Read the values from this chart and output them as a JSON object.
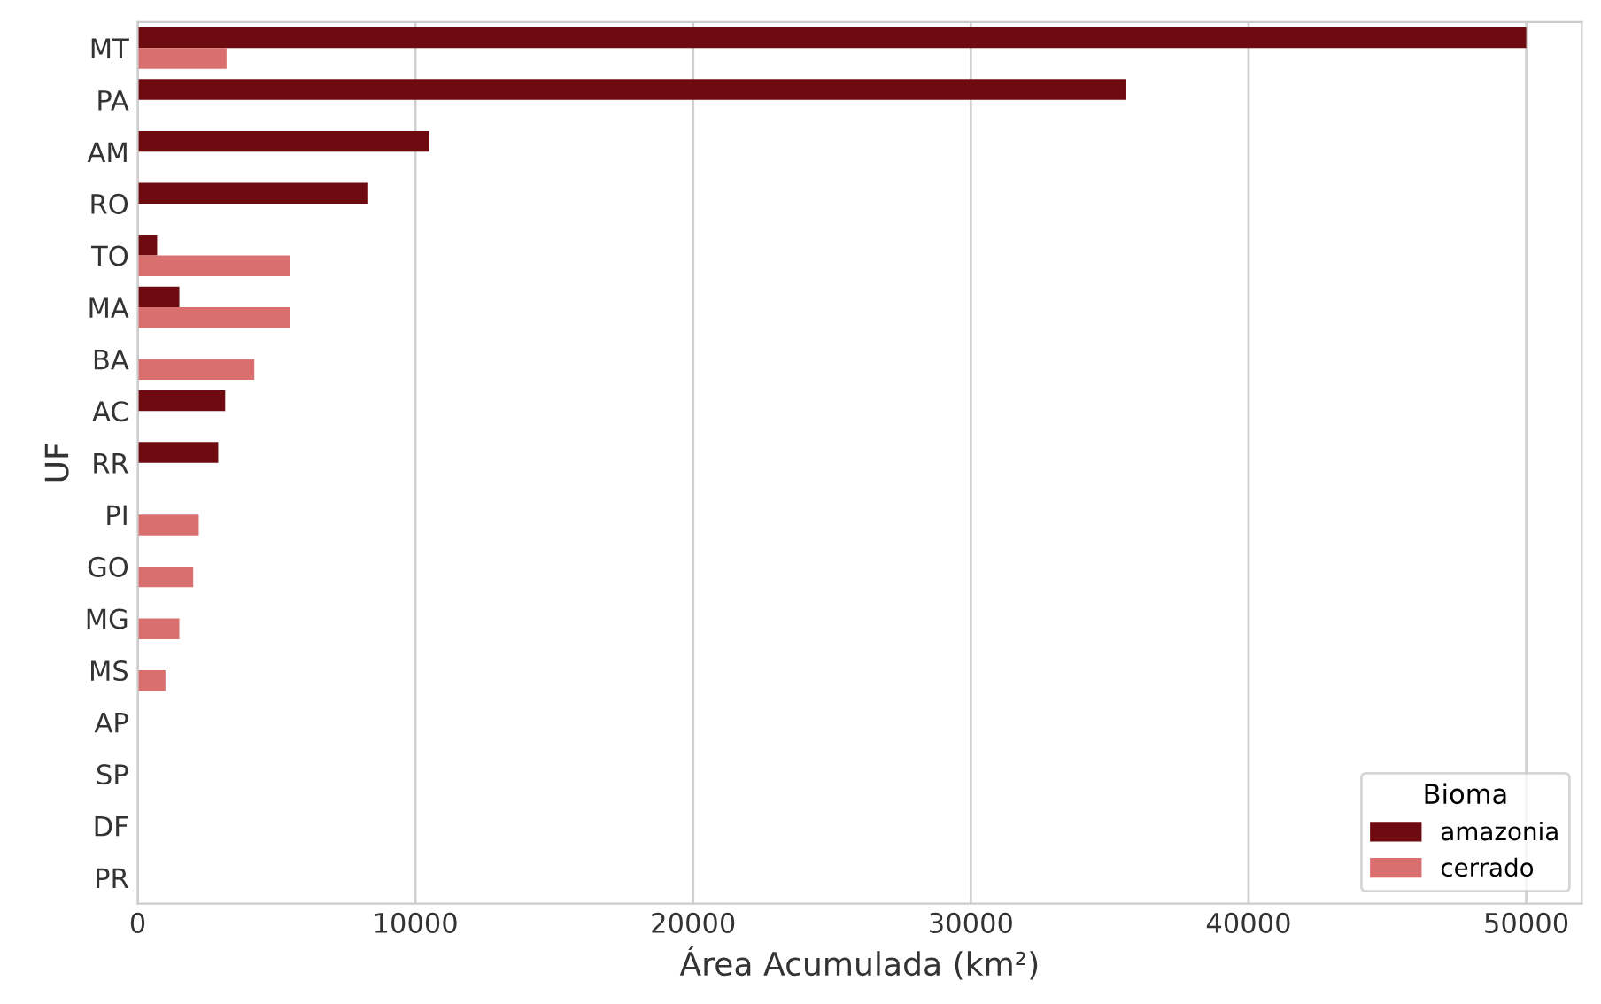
{
  "chart_data": {
    "type": "bar",
    "orientation": "horizontal",
    "xlabel": "Área Acumulada (km²)",
    "ylabel": "UF",
    "legend_title": "Bioma",
    "categories": [
      "MT",
      "PA",
      "AM",
      "RO",
      "TO",
      "MA",
      "BA",
      "AC",
      "RR",
      "PI",
      "GO",
      "MG",
      "MS",
      "AP",
      "SP",
      "DF",
      "PR"
    ],
    "series": [
      {
        "name": "amazonia",
        "color": "#6e0b10",
        "values": [
          50000,
          35600,
          10500,
          8300,
          700,
          1500,
          null,
          3150,
          2900,
          null,
          null,
          null,
          null,
          null,
          null,
          null,
          null
        ]
      },
      {
        "name": "cerrado",
        "color": "#d9706f",
        "values": [
          3200,
          null,
          null,
          null,
          5500,
          5500,
          4200,
          null,
          null,
          2200,
          2000,
          1500,
          1000,
          null,
          null,
          null,
          null
        ]
      }
    ],
    "xlim": [
      0,
      52000
    ],
    "xticks": [
      0,
      10000,
      20000,
      30000,
      40000,
      50000
    ],
    "grid": "x",
    "legend": "bottom right"
  }
}
